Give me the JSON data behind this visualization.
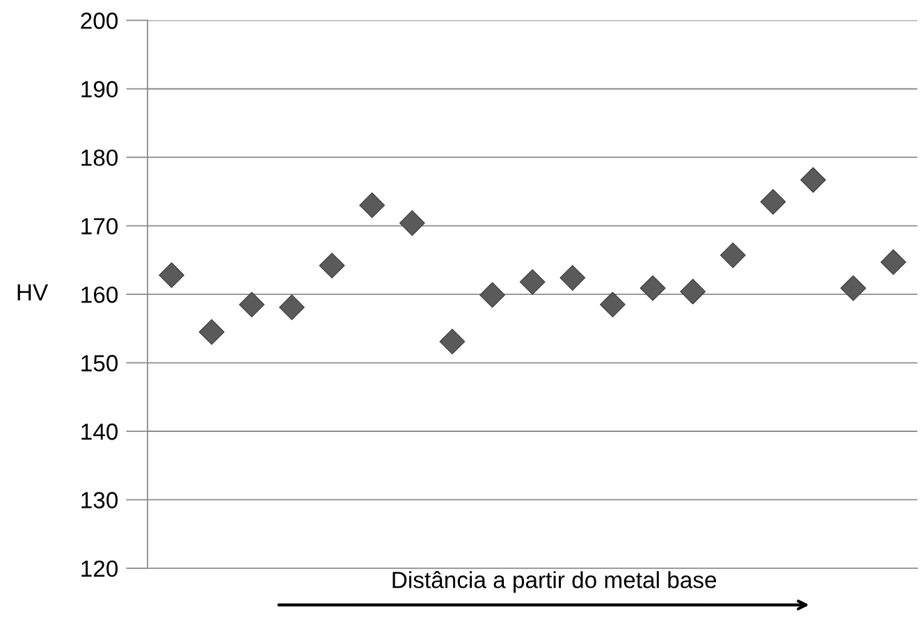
{
  "chart_data": {
    "type": "scatter",
    "ylabel": "HV",
    "xlabel": "Distância a partir do metal base",
    "categories": [
      null,
      null,
      null,
      null,
      null,
      null,
      null,
      null,
      null,
      null,
      null,
      null,
      null,
      null,
      null,
      null,
      null,
      null,
      null
    ],
    "series": [
      {
        "color": "#5a5a5a",
        "values": [
          162.8,
          154.5,
          158.5,
          158.1,
          164.2,
          173.0,
          170.4,
          153.1,
          159.9,
          161.8,
          162.4,
          158.5,
          160.9,
          160.4,
          165.7,
          173.5,
          176.7,
          160.9,
          164.7
        ]
      }
    ],
    "ylim": [
      120,
      200
    ],
    "yticks": [
      120,
      130,
      140,
      150,
      160,
      170,
      180,
      190,
      200
    ],
    "grid": "y",
    "marker": "diamond",
    "tick_labels": "y"
  }
}
